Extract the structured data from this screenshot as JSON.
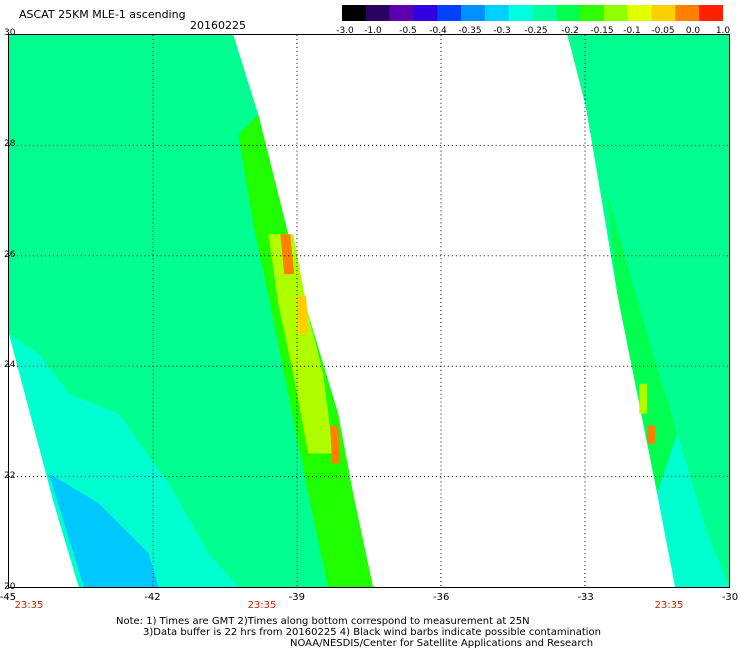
{
  "title": "ASCAT 25KM MLE-1 ascending",
  "date": "20160225",
  "colorbar": {
    "labels": [
      "-3.0",
      "-1.0",
      "-0.5",
      "-0.4",
      "-0.35",
      "-0.3",
      "-0.25",
      "-0.2",
      "-0.15",
      "-0.1",
      "-0.05",
      "0.0",
      "1.0"
    ],
    "colors": [
      "#000000",
      "#2a0060",
      "#5a00b0",
      "#3000e0",
      "#0040ff",
      "#0090ff",
      "#00d0ff",
      "#00ffe0",
      "#00ffa0",
      "#00ff50",
      "#30ff00",
      "#90ff00",
      "#e0ff00",
      "#ffd000",
      "#ff8000",
      "#ff2000"
    ]
  },
  "map": {
    "lat_labels": [
      "30",
      "28",
      "26",
      "24",
      "22",
      "20"
    ],
    "lon_labels": [
      "-45",
      "-42",
      "-39",
      "-36",
      "-33",
      "-30"
    ],
    "lat_range": [
      20,
      30
    ],
    "lon_range": [
      -45,
      -30
    ],
    "grid": true,
    "swath_fill_colors": [
      "#00ffd0",
      "#00ff90",
      "#00ff50",
      "#20ff00",
      "#b0ff00",
      "#ffd000",
      "#ff8000",
      "#00c8ff"
    ]
  },
  "times": [
    "23:35",
    "23:35",
    "23:35"
  ],
  "notes": [
    "Note: 1) Times are GMT 2)Times along bottom correspond to measurement at 25N",
    "3)Data buffer is 22 hrs from 20160225 4) Black wind barbs indicate possible contamination",
    "NOAA/NESDIS/Center for Satellite Applications and Research"
  ]
}
